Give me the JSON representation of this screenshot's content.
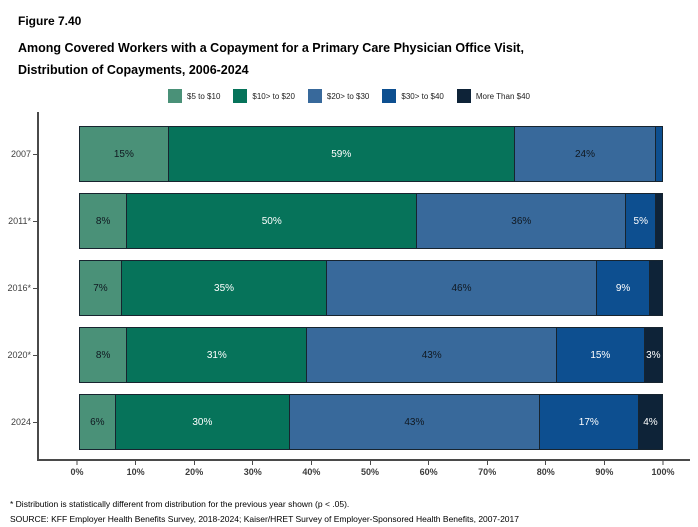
{
  "header": {
    "figure_label": "Figure 7.40",
    "title_line1": "Among Covered Workers with a Copayment for a Primary Care Physician Office Visit,",
    "title_line2": "Distribution of Copayments, 2006-2024"
  },
  "chart_data": {
    "type": "bar",
    "orientation": "horizontal",
    "stacked": true,
    "title": "Among Covered Workers with a Copayment for a Primary Care Physician Office Visit, Distribution of Copayments, 2006-2024",
    "xlabel": "",
    "ylabel": "",
    "xlim": [
      0,
      100
    ],
    "grid": false,
    "legend_position": "top",
    "x_ticks": [
      "0%",
      "10%",
      "20%",
      "30%",
      "40%",
      "50%",
      "60%",
      "70%",
      "80%",
      "90%",
      "100%"
    ],
    "categories": [
      "2007",
      "2011*",
      "2016*",
      "2020*",
      "2024"
    ],
    "legend": [
      {
        "name": "$5 to $10",
        "color": "#4A9178",
        "text_color": "#101820"
      },
      {
        "name": "$10> to $20",
        "color": "#06735A",
        "text_color": "#ffffff"
      },
      {
        "name": "$20> to $30",
        "color": "#38699B",
        "text_color": "#101820"
      },
      {
        "name": "$30> to $40",
        "color": "#0D4F90",
        "text_color": "#ffffff"
      },
      {
        "name": "More Than $40",
        "color": "#0E2338",
        "text_color": "#ffffff"
      }
    ],
    "rows": [
      {
        "category": "2007",
        "segments": [
          {
            "value": 15,
            "label": "15%"
          },
          {
            "value": 59,
            "label": "59%"
          },
          {
            "value": 24,
            "label": "24%"
          },
          {
            "value": 1,
            "label": ""
          },
          {
            "value": 0,
            "label": ""
          }
        ]
      },
      {
        "category": "2011*",
        "segments": [
          {
            "value": 8,
            "label": "8%"
          },
          {
            "value": 50,
            "label": "50%"
          },
          {
            "value": 36,
            "label": "36%"
          },
          {
            "value": 5,
            "label": "5%"
          },
          {
            "value": 1,
            "label": ""
          }
        ]
      },
      {
        "category": "2016*",
        "segments": [
          {
            "value": 7,
            "label": "7%"
          },
          {
            "value": 35,
            "label": "35%"
          },
          {
            "value": 46,
            "label": "46%"
          },
          {
            "value": 9,
            "label": "9%"
          },
          {
            "value": 2,
            "label": ""
          }
        ]
      },
      {
        "category": "2020*",
        "segments": [
          {
            "value": 8,
            "label": "8%"
          },
          {
            "value": 31,
            "label": "31%"
          },
          {
            "value": 43,
            "label": "43%"
          },
          {
            "value": 15,
            "label": "15%"
          },
          {
            "value": 3,
            "label": "3%"
          }
        ]
      },
      {
        "category": "2024",
        "segments": [
          {
            "value": 6,
            "label": "6%"
          },
          {
            "value": 30,
            "label": "30%"
          },
          {
            "value": 43,
            "label": "43%"
          },
          {
            "value": 17,
            "label": "17%"
          },
          {
            "value": 4,
            "label": "4%"
          }
        ]
      }
    ]
  },
  "footnotes": {
    "line1": "* Distribution is statistically different from distribution for the previous year shown (p < .05).",
    "line2": "SOURCE: KFF Employer Health Benefits Survey, 2018-2024; Kaiser/HRET Survey of Employer-Sponsored Health Benefits, 2007-2017"
  }
}
